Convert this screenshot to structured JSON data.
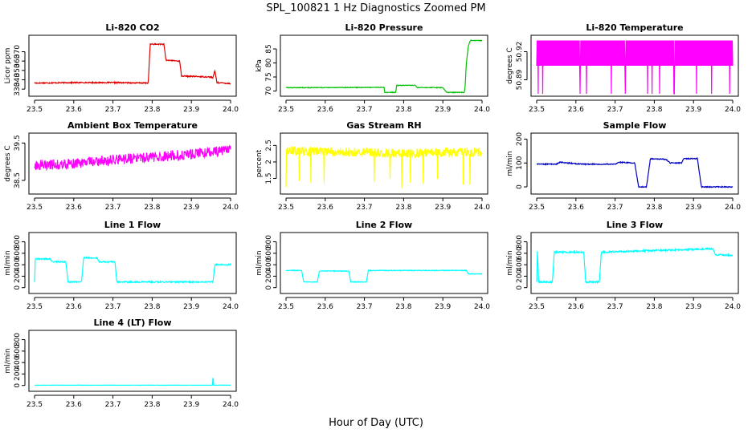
{
  "figure_title": "SPL_100821  1 Hz Diagnostics Zoomed PM",
  "x_axis_label": "Hour of Day (UTC)",
  "chart_data": [
    {
      "type": "line",
      "title": "Li-820 CO2",
      "ylabel": "Licor ppm",
      "color": "#e00000",
      "xlim": [
        23.5,
        24.0
      ],
      "xticks": [
        23.5,
        23.6,
        23.7,
        23.8,
        23.9,
        24.0
      ],
      "ylim": [
        325,
        385
      ],
      "yticks": [
        330,
        340,
        350,
        360,
        370
      ],
      "noise": 0.6,
      "x": [
        23.5,
        23.6,
        23.7,
        23.79,
        23.795,
        23.83,
        23.835,
        23.87,
        23.875,
        23.95,
        23.955,
        23.96,
        23.965,
        24.0
      ],
      "y": [
        336.5,
        337,
        337,
        336.5,
        378,
        378,
        361,
        360,
        344,
        343,
        342,
        350,
        337,
        336
      ]
    },
    {
      "type": "line",
      "title": "Li-820 Pressure",
      "ylabel": "kPa",
      "color": "#00c000",
      "xlim": [
        23.5,
        24.0
      ],
      "xticks": [
        23.5,
        23.6,
        23.7,
        23.8,
        23.9,
        24.0
      ],
      "ylim": [
        69,
        89
      ],
      "yticks": [
        70,
        75,
        80,
        85
      ],
      "noise": 0.12,
      "x": [
        23.5,
        23.6,
        23.75,
        23.752,
        23.78,
        23.782,
        23.83,
        23.835,
        23.9,
        23.91,
        23.955,
        23.957,
        23.96,
        23.965,
        23.97,
        24.0
      ],
      "y": [
        71.2,
        71.2,
        71.3,
        69.5,
        69.5,
        72,
        72,
        71.2,
        71.2,
        69.5,
        69.5,
        72,
        80,
        86,
        88,
        88
      ]
    },
    {
      "type": "line",
      "title": "Li-820 Temperature",
      "ylabel": "degrees C",
      "color": "#ff00ff",
      "xlim": [
        23.5,
        24.0
      ],
      "xticks": [
        23.5,
        23.6,
        23.7,
        23.8,
        23.9,
        24.0
      ],
      "ylim": [
        50.875,
        50.935
      ],
      "yticks": [
        50.89,
        50.92
      ],
      "noise": 0,
      "oscillate": [
        50.905,
        50.932
      ],
      "spike_to": 50.875,
      "x": [
        23.5,
        24.0
      ],
      "y": [
        50.905,
        50.905
      ]
    },
    {
      "type": "line",
      "title": "Ambient Box Temperature",
      "ylabel": "degrees C",
      "color": "#ff00ff",
      "xlim": [
        23.5,
        24.0
      ],
      "xticks": [
        23.5,
        23.6,
        23.7,
        23.8,
        23.9,
        24.0
      ],
      "ylim": [
        38.2,
        39.7
      ],
      "yticks": [
        38.5,
        39.5
      ],
      "noise": 0.14,
      "x": [
        23.5,
        23.6,
        23.7,
        23.8,
        23.9,
        24.0
      ],
      "y": [
        38.9,
        38.95,
        39.05,
        39.12,
        39.2,
        39.3
      ]
    },
    {
      "type": "line",
      "title": "Gas Stream RH",
      "ylabel": "percent",
      "color": "#ffff00",
      "xlim": [
        23.5,
        24.0
      ],
      "xticks": [
        23.5,
        23.6,
        23.7,
        23.8,
        23.9,
        24.0
      ],
      "ylim": [
        1.1,
        2.8
      ],
      "yticks": [
        1.5,
        2.0,
        2.5
      ],
      "noise": 0.14,
      "spike_to": 1.2,
      "x": [
        23.5,
        23.6,
        23.7,
        23.8,
        23.9,
        24.0
      ],
      "y": [
        2.35,
        2.3,
        2.3,
        2.25,
        2.3,
        2.3
      ]
    },
    {
      "type": "line",
      "title": "Sample Flow",
      "ylabel": "ml/min",
      "color": "#0000c0",
      "xlim": [
        23.5,
        24.0
      ],
      "xticks": [
        23.5,
        23.6,
        23.7,
        23.8,
        23.9,
        24.0
      ],
      "ylim": [
        -20,
        215
      ],
      "yticks": [
        0,
        100,
        200
      ],
      "noise": 2,
      "x": [
        23.5,
        23.55,
        23.56,
        23.6,
        23.62,
        23.7,
        23.71,
        23.75,
        23.76,
        23.78,
        23.79,
        23.83,
        23.84,
        23.87,
        23.875,
        23.91,
        23.92,
        24.0
      ],
      "y": [
        95,
        95,
        103,
        97,
        95,
        95,
        103,
        100,
        0,
        0,
        118,
        115,
        100,
        100,
        118,
        118,
        0,
        0
      ]
    },
    {
      "type": "line",
      "title": "Line 1 Flow",
      "ylabel": "ml/min",
      "color": "#00ffff",
      "xlim": [
        23.5,
        24.0
      ],
      "xticks": [
        23.5,
        23.6,
        23.7,
        23.8,
        23.9,
        24.0
      ],
      "ylim": [
        -60,
        920
      ],
      "yticks": [
        0,
        200,
        400,
        600,
        800
      ],
      "noise": 12,
      "x": [
        23.5,
        23.502,
        23.54,
        23.545,
        23.58,
        23.585,
        23.62,
        23.625,
        23.66,
        23.665,
        23.705,
        23.71,
        23.955,
        23.96,
        24.0
      ],
      "y": [
        100,
        500,
        500,
        450,
        450,
        100,
        100,
        520,
        520,
        450,
        450,
        100,
        100,
        400,
        400
      ]
    },
    {
      "type": "line",
      "title": "Line 2 Flow",
      "ylabel": "ml/min",
      "color": "#00ffff",
      "xlim": [
        23.5,
        24.0
      ],
      "xticks": [
        23.5,
        23.6,
        23.7,
        23.8,
        23.9,
        24.0
      ],
      "ylim": [
        -60,
        920
      ],
      "yticks": [
        0,
        200,
        400,
        600,
        800
      ],
      "noise": 6,
      "x": [
        23.5,
        23.54,
        23.545,
        23.58,
        23.585,
        23.66,
        23.665,
        23.705,
        23.71,
        23.96,
        23.965,
        24.0
      ],
      "y": [
        300,
        300,
        100,
        100,
        290,
        290,
        100,
        100,
        300,
        300,
        240,
        240
      ]
    },
    {
      "type": "line",
      "title": "Line 3 Flow",
      "ylabel": "ml/min",
      "color": "#00ffff",
      "xlim": [
        23.5,
        24.0
      ],
      "xticks": [
        23.5,
        23.6,
        23.7,
        23.8,
        23.9,
        24.0
      ],
      "ylim": [
        -60,
        920
      ],
      "yticks": [
        0,
        200,
        400,
        600,
        800
      ],
      "noise": 14,
      "x": [
        23.5,
        23.502,
        23.505,
        23.54,
        23.545,
        23.62,
        23.625,
        23.66,
        23.665,
        23.95,
        23.955,
        24.0
      ],
      "y": [
        100,
        650,
        100,
        100,
        620,
        620,
        100,
        100,
        620,
        680,
        580,
        560
      ]
    },
    {
      "type": "line",
      "title": "Line 4 (LT) Flow",
      "ylabel": "ml/min",
      "color": "#00ffff",
      "xlim": [
        23.5,
        24.0
      ],
      "xticks": [
        23.5,
        23.6,
        23.7,
        23.8,
        23.9,
        24.0
      ],
      "ylim": [
        -60,
        920
      ],
      "yticks": [
        0,
        200,
        400,
        600,
        800
      ],
      "noise": 2,
      "spike_at": 23.955,
      "spike_val": 120,
      "x": [
        23.5,
        24.0
      ],
      "y": [
        5,
        5
      ]
    }
  ]
}
